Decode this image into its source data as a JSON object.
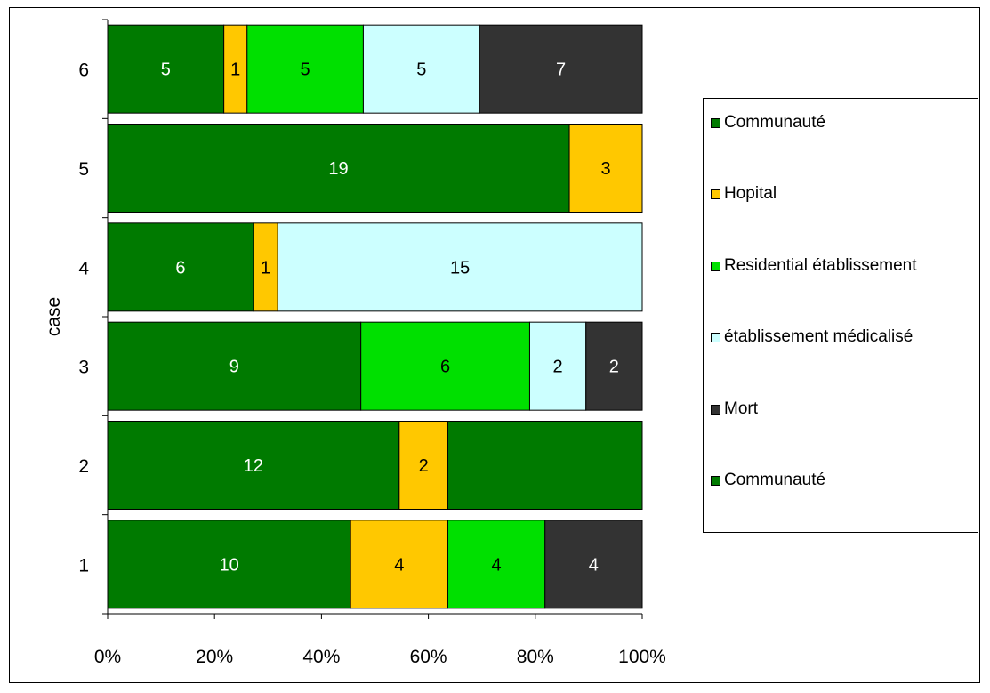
{
  "chart_data": {
    "type": "bar",
    "orientation": "horizontal",
    "stacking": "percent",
    "ylabel": "case",
    "xlabel": "",
    "categories": [
      "1",
      "2",
      "3",
      "4",
      "5",
      "6"
    ],
    "xticks": [
      "0%",
      "20%",
      "40%",
      "60%",
      "80%",
      "100%"
    ],
    "xlim": [
      0,
      100
    ],
    "legend_position": "right",
    "series": [
      {
        "name": "Communauté",
        "color": "#007a00",
        "values": [
          10,
          12,
          9,
          6,
          19,
          5
        ]
      },
      {
        "name": "Hopital",
        "color": "#ffc800",
        "values": [
          4,
          2,
          0,
          1,
          3,
          1
        ]
      },
      {
        "name": "Residential établissement",
        "color": "#00e000",
        "values": [
          4,
          0,
          6,
          0,
          0,
          5
        ]
      },
      {
        "name": "établissement médicalisé",
        "color": "#ccffff",
        "values": [
          0,
          0,
          2,
          15,
          0,
          5
        ]
      },
      {
        "name": "Mort",
        "color": "#333333",
        "values": [
          4,
          0,
          2,
          0,
          0,
          7
        ]
      },
      {
        "name": "Communauté",
        "color": "#007a00",
        "values": [
          0,
          8,
          0,
          0,
          0,
          0
        ],
        "show_labels": false
      }
    ]
  }
}
